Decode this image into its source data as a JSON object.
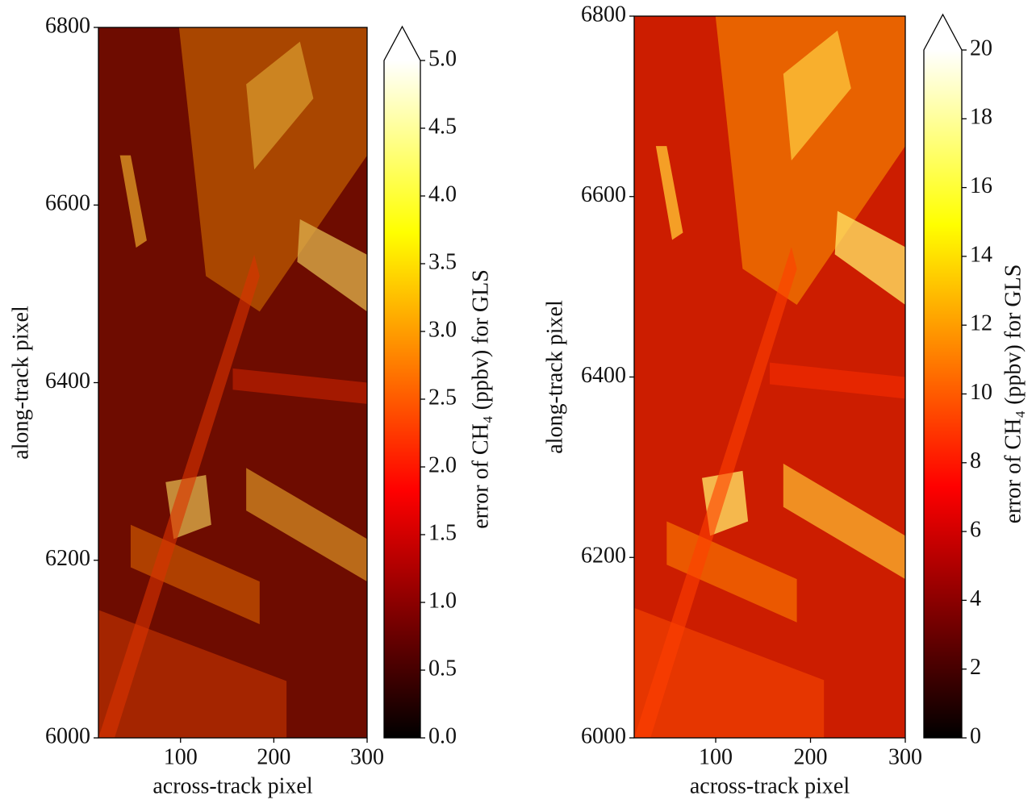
{
  "chart_data": [
    {
      "type": "heatmap",
      "xlabel": "across-track pixel",
      "ylabel": "along-track pixel",
      "xlim": [
        12,
        300
      ],
      "ylim": [
        6000,
        6800
      ],
      "xticks": [
        100,
        200,
        300
      ],
      "yticks": [
        6000,
        6200,
        6400,
        6600,
        6800
      ],
      "colormap": "hot",
      "colorbar_extend": "max",
      "colorbar_label": "error of CH₄ (ppbv) for GLS",
      "clim": [
        0,
        5
      ],
      "cticks": [
        {
          "value": 0,
          "label": "0.0"
        },
        0.5,
        {
          "value": 1,
          "label": "1.0"
        },
        1.5,
        {
          "value": 2,
          "label": "2.0"
        },
        2.5,
        {
          "value": 3,
          "label": "3.0"
        },
        3.5,
        {
          "value": 4,
          "label": "4.0"
        },
        4.5,
        {
          "value": 5,
          "label": "5.0"
        }
      ]
    },
    {
      "type": "heatmap",
      "xlabel": "across-track pixel",
      "ylabel": "along-track pixel",
      "xlim": [
        14,
        300
      ],
      "ylim": [
        6000,
        6800
      ],
      "xticks": [
        100,
        200,
        300
      ],
      "yticks": [
        6000,
        6200,
        6400,
        6600,
        6800
      ],
      "colormap": "hot",
      "colorbar_extend": "max",
      "colorbar_label": "error of CH₄ (ppbv) for GLS",
      "clim": [
        0,
        20
      ],
      "cticks": [
        0,
        2,
        4,
        6,
        8,
        10,
        12,
        14,
        16,
        18,
        20
      ]
    }
  ]
}
